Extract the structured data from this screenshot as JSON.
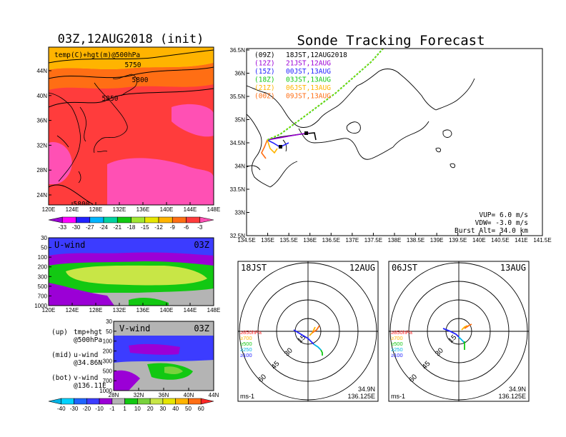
{
  "left_title": "03Z,12AUG2018 (init)",
  "right_title": "Sonde Tracking Forecast",
  "map500": {
    "label": "temp(C)+hgt(m)@500hPa",
    "contours": [
      "5750",
      "5800",
      "5850",
      "5800"
    ],
    "lat_ticks": [
      "44N",
      "40N",
      "36N",
      "32N",
      "28N",
      "24N"
    ],
    "lon_ticks": [
      "120E",
      "124E",
      "128E",
      "132E",
      "136E",
      "140E",
      "144E",
      "148E"
    ]
  },
  "temp_colorbar": {
    "labels": [
      "-33",
      "-30",
      "-27",
      "-24",
      "-21",
      "-18",
      "-15",
      "-12",
      "-9",
      "-6",
      "-3"
    ],
    "colors": [
      "#9b00d6",
      "#ff00ff",
      "#2222ff",
      "#00b4ff",
      "#00d2a0",
      "#12c812",
      "#a0e632",
      "#e6e600",
      "#ffb400",
      "#ff6e14",
      "#ff3c3c",
      "#ff50b4"
    ]
  },
  "uwind": {
    "title": "U-wind",
    "time": "03Z",
    "p_ticks": [
      "30",
      "50",
      "100",
      "200",
      "300",
      "500",
      "700",
      "1000"
    ],
    "lon_ticks": [
      "120E",
      "124E",
      "128E",
      "132E",
      "136E",
      "140E",
      "144E",
      "148E"
    ]
  },
  "vwind": {
    "title": "V-wind",
    "time": "03Z",
    "p_ticks": [
      "30",
      "50",
      "100",
      "200",
      "300",
      "500",
      "700",
      "1000"
    ],
    "lat_ticks": [
      "28N",
      "32N",
      "36N",
      "40N",
      "44N"
    ]
  },
  "side_notes": [
    {
      "k": "(up)",
      "line1": "tmp+hgt",
      "line2": "@500hPa"
    },
    {
      "k": "(mid)",
      "line1": "u-wind",
      "line2": "@34.86N"
    },
    {
      "k": "(bot)",
      "line1": "v-wind",
      "line2": "@136.11E"
    }
  ],
  "wind_colorbar": {
    "labels": [
      "-40",
      "-30",
      "-20",
      "-10",
      "-1",
      "1",
      "10",
      "20",
      "30",
      "40",
      "50",
      "60"
    ],
    "colors": [
      "#00b4e6",
      "#00d2ff",
      "#1e64ff",
      "#3c3cff",
      "#9b00d6",
      "#b4b4b4",
      "#12c812",
      "#78d23c",
      "#c8e646",
      "#e6e600",
      "#ffb400",
      "#ff6e14",
      "#ff2828"
    ]
  },
  "tracking": {
    "legend": [
      {
        "code": "(09Z)",
        "text": "18JST,12AUG2018",
        "color": "#000000"
      },
      {
        "code": "(12Z)",
        "text": "21JST,12AUG",
        "color": "#9b00d6"
      },
      {
        "code": "(15Z)",
        "text": "00JST,13AUG",
        "color": "#2222ff"
      },
      {
        "code": "(18Z)",
        "text": "03JST,13AUG",
        "color": "#12c812"
      },
      {
        "code": "(21Z)",
        "text": "06JST,13AUG",
        "color": "#ffb400"
      },
      {
        "code": "(00Z)",
        "text": "09JST,13AUG",
        "color": "#ff6e14"
      }
    ],
    "lat_ticks": [
      "36.5N",
      "36N",
      "35.5N",
      "35N",
      "34.5N",
      "34N",
      "33.5N",
      "33N",
      "32.5N"
    ],
    "lon_ticks": [
      "134.5E",
      "135E",
      "135.5E",
      "136E",
      "136.5E",
      "137E",
      "137.5E",
      "138E",
      "138.5E",
      "139E",
      "139.5E",
      "140E",
      "140.5E",
      "141E",
      "141.5E"
    ],
    "params": [
      "VUP= 6.0 m/s",
      "VDW= -3.0 m/s",
      "Burst Alt= 34.0 km"
    ]
  },
  "hodo_left": {
    "time": "18JST",
    "date": "12AUG",
    "rings": [
      "15",
      "30",
      "45",
      "60"
    ],
    "levels": [
      "≥850hPa",
      "≥700",
      "≥500",
      "≥250",
      "≥100"
    ],
    "level_colors": [
      "#ff2828",
      "#ffb400",
      "#12c812",
      "#00b4e6",
      "#2222ff"
    ],
    "unit": "ms-1",
    "lat": "34.9N",
    "lon": "136.125E"
  },
  "hodo_right": {
    "time": "06JST",
    "date": "13AUG",
    "rings": [
      "15",
      "30",
      "45",
      "60"
    ],
    "levels": [
      "≥850hPa",
      "≥700",
      "≥500",
      "≥250",
      "≥100"
    ],
    "level_colors": [
      "#ff2828",
      "#ffb400",
      "#12c812",
      "#00b4e6",
      "#2222ff"
    ],
    "unit": "ms-1",
    "lat": "34.9N",
    "lon": "136.125E"
  }
}
